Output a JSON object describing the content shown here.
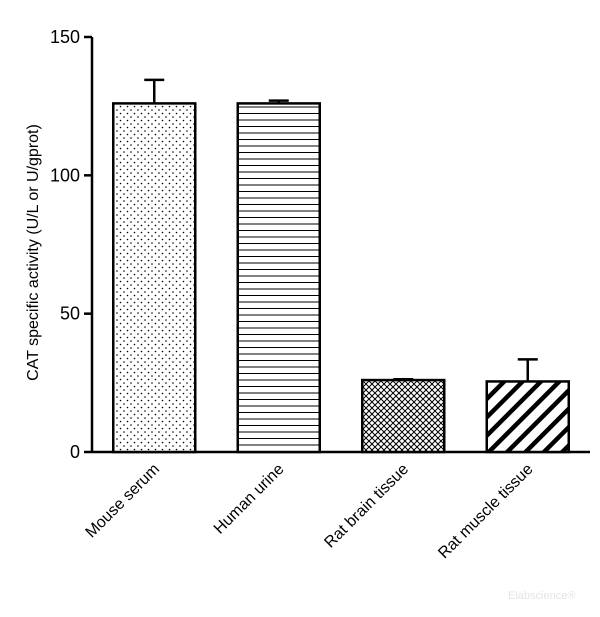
{
  "chart_data": {
    "type": "bar",
    "title": "",
    "xlabel": "",
    "ylabel": "CAT specific activity (U/L or U/gprot)",
    "ylim": [
      0,
      150
    ],
    "yticks": [
      0,
      50,
      100,
      150
    ],
    "categories": [
      "Mouse serum",
      "Human urine",
      "Rat brain tissue",
      "Rat muscle tissue"
    ],
    "values": [
      126,
      126,
      26,
      25.5
    ],
    "errors": [
      8.5,
      1,
      0.3,
      8
    ],
    "patterns": [
      "dots",
      "horizontal-lines",
      "crosshatch",
      "diagonal-stripes"
    ],
    "grid": false,
    "legend": "none",
    "bar_color": "#ffffff",
    "line_color": "#000000"
  },
  "watermark": "Elabscience®"
}
